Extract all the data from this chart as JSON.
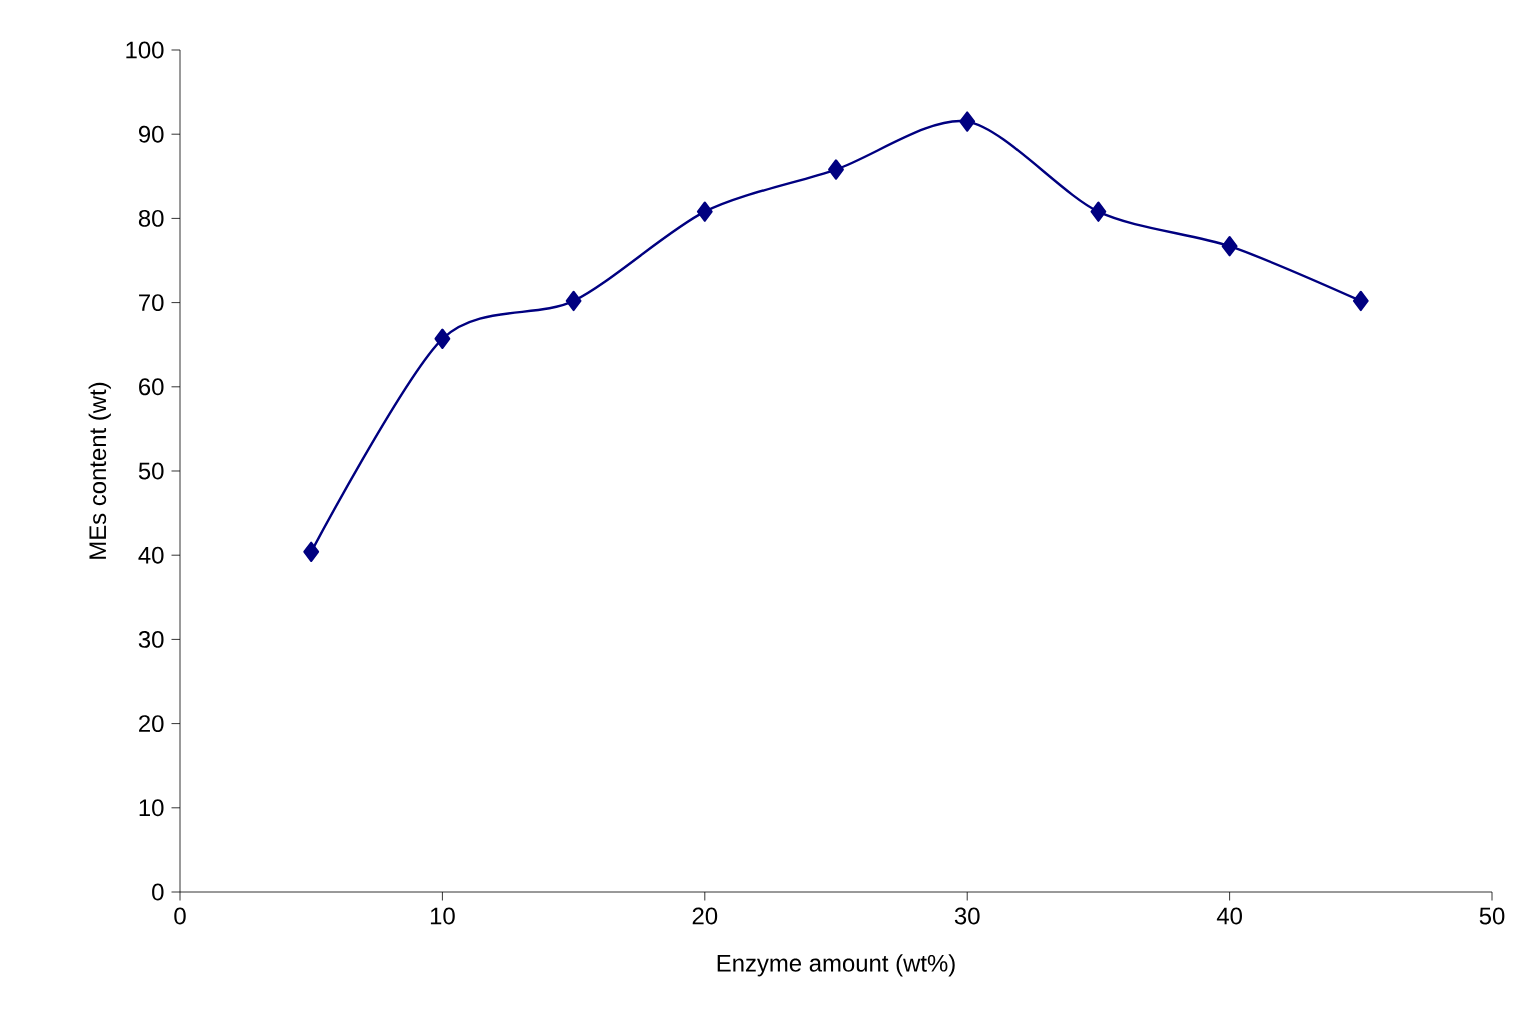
{
  "chart_data": {
    "type": "line",
    "xlabel": "Enzyme amount (wt%)",
    "ylabel": "MEs content (wt)",
    "x": [
      5,
      10,
      15,
      20,
      25,
      30,
      35,
      40,
      45
    ],
    "series": [
      {
        "color": "#000080",
        "values": [
          40.4,
          65.7,
          70.2,
          80.8,
          85.8,
          91.5,
          80.8,
          76.7,
          70.2
        ]
      }
    ],
    "xlim": [
      0,
      50
    ],
    "xticks": [
      0,
      10,
      20,
      30,
      40,
      50
    ],
    "ylim": [
      0,
      100
    ],
    "yticks": [
      0,
      10,
      20,
      30,
      40,
      50,
      60,
      70,
      80,
      90,
      100
    ],
    "marker": "diamond",
    "line_style": "solid",
    "grid": false
  }
}
